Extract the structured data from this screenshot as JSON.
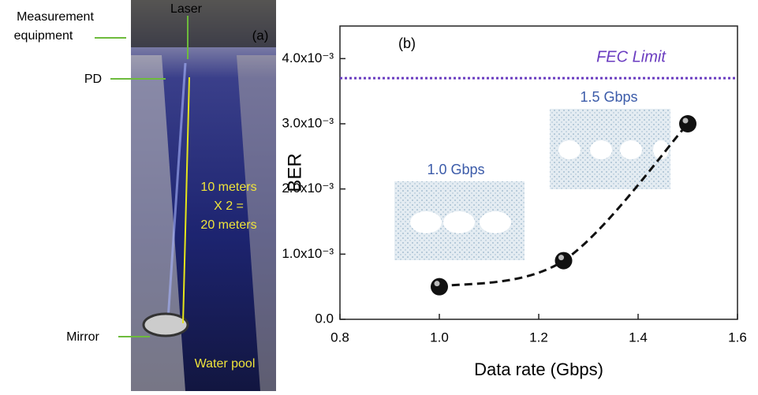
{
  "photo": {
    "panel_label": "(a)",
    "measurement_label": [
      "Measurement",
      "equipment"
    ],
    "laser_label": "Laser",
    "pd_label": "PD",
    "distance_label": [
      "10 meters",
      "X 2 =",
      "20 meters"
    ],
    "mirror_label": "Mirror",
    "pool_label": "Water pool"
  },
  "chart_data": {
    "type": "scatter",
    "panel_label": "(b)",
    "x_label": "Data rate (Gbps)",
    "y_label": "BER",
    "x": [
      1.0,
      1.25,
      1.5
    ],
    "values": [
      0.0005,
      0.0009,
      0.003
    ],
    "color": "#111111",
    "xlim": [
      0.8,
      1.6
    ],
    "xticks": [
      0.8,
      {
        "value": 1.0,
        "label": "1.0"
      },
      1.2,
      1.4,
      1.6
    ],
    "ylim": [
      0,
      0.0045
    ],
    "yticks": [
      {
        "value": 0,
        "label": "0.0"
      },
      {
        "value": 0.001,
        "label": "1.0x10⁻³"
      },
      {
        "value": 0.002,
        "label": "2.0x10⁻³"
      },
      {
        "value": 0.003,
        "label": "3.0x10⁻³"
      },
      {
        "value": 0.004,
        "label": "4.0x10⁻³"
      }
    ],
    "fec_limit": {
      "label": "FEC Limit",
      "value": 0.0037,
      "color": "#6a3cc0"
    },
    "eye_labels": [
      "1.0 Gbps",
      "1.5 Gbps"
    ]
  }
}
